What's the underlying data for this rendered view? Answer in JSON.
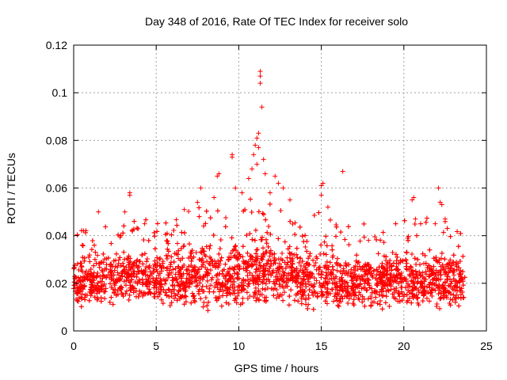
{
  "chart_data": {
    "type": "scatter",
    "title": "Day 348 of 2016, Rate Of TEC Index for receiver solo",
    "xlabel": "GPS time / hours",
    "ylabel": "ROTI / TECUs",
    "xlim": [
      0,
      25
    ],
    "ylim": [
      0,
      0.12
    ],
    "x_ticks": [
      0,
      5,
      10,
      15,
      20,
      25
    ],
    "x_tick_labels": [
      "0",
      "5",
      "10",
      "15",
      "20",
      "25"
    ],
    "y_ticks": [
      0,
      0.02,
      0.04,
      0.06,
      0.08,
      0.1,
      0.12
    ],
    "y_tick_labels": [
      "0",
      "0.02",
      "0.04",
      "0.06",
      "0.08",
      "0.1",
      "0.12"
    ],
    "grid": true,
    "marker": "+",
    "series": [
      {
        "name": "ROTI",
        "color": "#ff0000",
        "envelope_note": "dense point cloud generated from per-hour envelope",
        "hourly_envelope": {
          "hours": [
            0,
            1,
            2,
            3,
            4,
            5,
            6,
            7,
            8,
            9,
            10,
            11,
            12,
            13,
            14,
            15,
            16,
            17,
            18,
            19,
            20,
            21,
            22,
            23,
            23.7
          ],
          "low": [
            0.008,
            0.005,
            0.005,
            0.006,
            0.006,
            0.006,
            0.005,
            0.005,
            0.005,
            0.005,
            0.005,
            0.005,
            0.005,
            0.005,
            0.005,
            0.005,
            0.005,
            0.005,
            0.004,
            0.005,
            0.005,
            0.005,
            0.003,
            0.005,
            0.006
          ],
          "typical": [
            0.03,
            0.036,
            0.036,
            0.04,
            0.04,
            0.036,
            0.036,
            0.042,
            0.042,
            0.04,
            0.044,
            0.05,
            0.044,
            0.04,
            0.038,
            0.04,
            0.036,
            0.034,
            0.036,
            0.036,
            0.038,
            0.036,
            0.04,
            0.036,
            0.032
          ]
        },
        "outliers": [
          {
            "x": 11.3,
            "y": 0.109
          },
          {
            "x": 11.3,
            "y": 0.107
          },
          {
            "x": 11.3,
            "y": 0.104
          },
          {
            "x": 11.4,
            "y": 0.094
          },
          {
            "x": 11.2,
            "y": 0.083
          },
          {
            "x": 11.1,
            "y": 0.081
          },
          {
            "x": 11.0,
            "y": 0.078
          },
          {
            "x": 11.2,
            "y": 0.077
          },
          {
            "x": 10.9,
            "y": 0.074
          },
          {
            "x": 11.1,
            "y": 0.07
          },
          {
            "x": 10.8,
            "y": 0.068
          },
          {
            "x": 11.5,
            "y": 0.072
          },
          {
            "x": 11.6,
            "y": 0.066
          },
          {
            "x": 10.6,
            "y": 0.064
          },
          {
            "x": 12.2,
            "y": 0.065
          },
          {
            "x": 12.4,
            "y": 0.062
          },
          {
            "x": 9.6,
            "y": 0.074
          },
          {
            "x": 9.6,
            "y": 0.073
          },
          {
            "x": 8.8,
            "y": 0.066
          },
          {
            "x": 8.7,
            "y": 0.065
          },
          {
            "x": 3.4,
            "y": 0.058
          },
          {
            "x": 3.4,
            "y": 0.057
          },
          {
            "x": 7.7,
            "y": 0.06
          },
          {
            "x": 9.8,
            "y": 0.06
          },
          {
            "x": 15.0,
            "y": 0.061
          },
          {
            "x": 15.1,
            "y": 0.062
          },
          {
            "x": 15.0,
            "y": 0.057
          },
          {
            "x": 16.3,
            "y": 0.067
          },
          {
            "x": 20.6,
            "y": 0.056
          },
          {
            "x": 20.5,
            "y": 0.055
          },
          {
            "x": 22.1,
            "y": 0.06
          },
          {
            "x": 22.2,
            "y": 0.054
          },
          {
            "x": 22.3,
            "y": 0.053
          },
          {
            "x": 1.5,
            "y": 0.05
          },
          {
            "x": 3.1,
            "y": 0.05
          },
          {
            "x": 6.7,
            "y": 0.051
          },
          {
            "x": 7.5,
            "y": 0.054
          },
          {
            "x": 8.5,
            "y": 0.056
          },
          {
            "x": 10.2,
            "y": 0.058
          },
          {
            "x": 11.9,
            "y": 0.058
          },
          {
            "x": 12.7,
            "y": 0.06
          },
          {
            "x": 13.1,
            "y": 0.055
          },
          {
            "x": 15.4,
            "y": 0.052
          },
          {
            "x": 20.7,
            "y": 0.047
          },
          {
            "x": 22.5,
            "y": 0.047
          },
          {
            "x": 21.9,
            "y": 0.045
          },
          {
            "x": 0.6,
            "y": 0.042
          },
          {
            "x": 4.3,
            "y": 0.045
          }
        ]
      }
    ]
  }
}
